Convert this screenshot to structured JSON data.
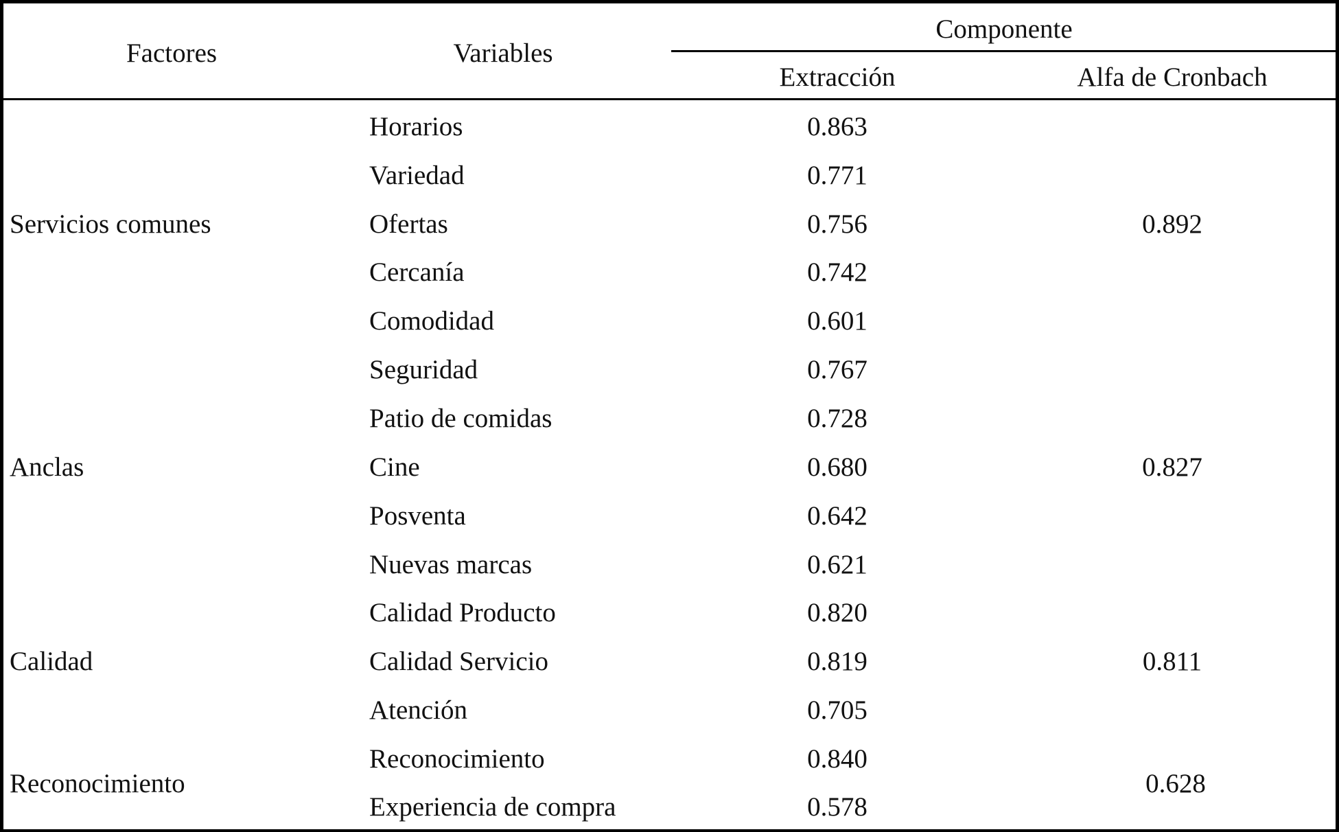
{
  "table": {
    "headers": {
      "factores": "Factores",
      "variables": "Variables",
      "componente": "Componente",
      "extraccion": "Extracción",
      "alfa": "Alfa de Cronbach"
    },
    "rows": [
      {
        "variable": "Horarios",
        "extraccion": "0.863"
      },
      {
        "variable": "Variedad",
        "extraccion": "0.771"
      },
      {
        "variable": "Ofertas",
        "extraccion": "0.756"
      },
      {
        "variable": "Cercanía",
        "extraccion": "0.742"
      },
      {
        "variable": "Comodidad",
        "extraccion": "0.601"
      },
      {
        "variable": "Seguridad",
        "extraccion": "0.767"
      },
      {
        "variable": "Patio de comidas",
        "extraccion": "0.728"
      },
      {
        "variable": "Cine",
        "extraccion": "0.680"
      },
      {
        "variable": "Posventa",
        "extraccion": "0.642"
      },
      {
        "variable": "Nuevas marcas",
        "extraccion": "0.621"
      },
      {
        "variable": "Calidad Producto",
        "extraccion": "0.820"
      },
      {
        "variable": "Calidad Servicio",
        "extraccion": "0.819"
      },
      {
        "variable": "Atención",
        "extraccion": "0.705"
      },
      {
        "variable": "Reconocimiento",
        "extraccion": "0.840"
      },
      {
        "variable": "Experiencia de compra",
        "extraccion": "0.578"
      }
    ],
    "groups": [
      {
        "factor": "Servicios comunes",
        "alfa": "0.892"
      },
      {
        "factor": "Anclas",
        "alfa": "0.827"
      },
      {
        "factor": "Calidad",
        "alfa": "0.811"
      },
      {
        "factor": "Reconocimiento",
        "alfa": "0.628"
      }
    ]
  }
}
